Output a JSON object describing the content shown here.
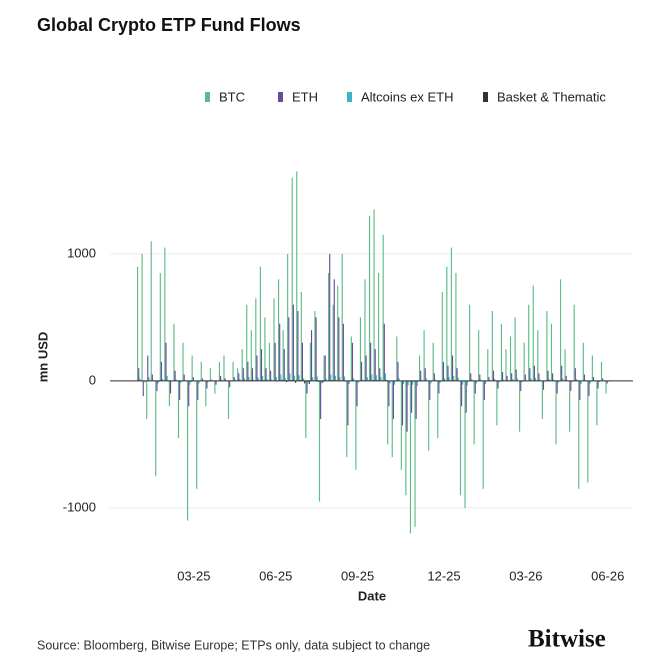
{
  "chart_data": {
    "type": "bar",
    "title": "Global Crypto ETP Fund Flows",
    "x_label": "Date",
    "y_label": "mn USD",
    "source": "Source: Bloomberg, Bitwise Europe; ETPs only, data subject to change",
    "brand": "Bitwise",
    "categories": [
      null,
      null,
      null,
      null,
      null,
      null,
      null,
      null,
      null,
      null,
      null,
      null,
      "03-25",
      null,
      null,
      null,
      null,
      null,
      null,
      null,
      null,
      null,
      null,
      null,
      null,
      null,
      null,
      null,
      null,
      null,
      "06-25",
      null,
      null,
      null,
      null,
      null,
      null,
      null,
      null,
      null,
      null,
      null,
      null,
      null,
      null,
      null,
      null,
      null,
      "09-25",
      null,
      null,
      null,
      null,
      null,
      null,
      null,
      null,
      null,
      null,
      null,
      null,
      null,
      null,
      null,
      null,
      null,
      null,
      "12-25",
      null,
      null,
      null,
      null,
      null,
      null,
      null,
      null,
      null,
      null,
      null,
      null,
      null,
      null,
      null,
      null,
      null,
      "03-26",
      null,
      null,
      null,
      null,
      null,
      null,
      null,
      null,
      null,
      null,
      null,
      null,
      null,
      null,
      null,
      null,
      null,
      "06-26"
    ],
    "series": [
      {
        "name": "BTC",
        "color": "#5dbb87",
        "values": [
          900,
          1000,
          -300,
          1100,
          -750,
          850,
          1050,
          -200,
          450,
          -450,
          300,
          -1100,
          200,
          -850,
          150,
          -200,
          100,
          -100,
          150,
          200,
          -300,
          150,
          100,
          250,
          600,
          400,
          650,
          900,
          500,
          300,
          650,
          800,
          400,
          1000,
          1600,
          1650,
          700,
          -450,
          300,
          550,
          -950,
          200,
          850,
          600,
          750,
          1000,
          -600,
          350,
          -700,
          500,
          800,
          1300,
          1350,
          850,
          1150,
          -500,
          -600,
          350,
          -700,
          -900,
          -1200,
          -1150,
          200,
          400,
          -550,
          300,
          -450,
          700,
          900,
          1050,
          850,
          -900,
          -1000,
          600,
          -500,
          400,
          -850,
          250,
          550,
          -350,
          450,
          250,
          350,
          500,
          -400,
          300,
          600,
          750,
          400,
          -300,
          550,
          450,
          -500,
          800,
          250,
          -400,
          600,
          -850,
          300,
          -800,
          200,
          -350,
          150,
          -100
        ]
      },
      {
        "name": "ETH",
        "color": "#6a4a9c",
        "values": [
          100,
          -120,
          200,
          50,
          -80,
          150,
          300,
          -100,
          80,
          -150,
          50,
          -200,
          30,
          -150,
          20,
          -60,
          10,
          -30,
          40,
          20,
          -50,
          30,
          60,
          100,
          150,
          100,
          200,
          250,
          100,
          80,
          300,
          450,
          250,
          500,
          600,
          550,
          300,
          -100,
          400,
          500,
          -300,
          200,
          1000,
          800,
          500,
          450,
          -350,
          300,
          -200,
          150,
          200,
          300,
          250,
          100,
          450,
          -200,
          -300,
          150,
          -350,
          -400,
          -250,
          -300,
          80,
          100,
          -150,
          60,
          -100,
          150,
          120,
          200,
          100,
          -200,
          -250,
          60,
          -100,
          50,
          -150,
          30,
          80,
          -60,
          70,
          40,
          60,
          90,
          -80,
          50,
          100,
          120,
          60,
          -70,
          80,
          60,
          -100,
          120,
          40,
          -80,
          100,
          -150,
          50,
          -120,
          30,
          -60,
          20,
          -20
        ]
      },
      {
        "name": "Altcoins ex ETH",
        "color": "#3bb4c4",
        "values": [
          20,
          -10,
          30,
          5,
          -20,
          15,
          40,
          -5,
          10,
          -15,
          5,
          -30,
          0,
          -20,
          5,
          -10,
          0,
          -5,
          10,
          5,
          -5,
          10,
          15,
          20,
          30,
          10,
          25,
          40,
          15,
          10,
          30,
          50,
          20,
          60,
          40,
          45,
          20,
          -10,
          30,
          35,
          -20,
          15,
          50,
          40,
          30,
          35,
          -25,
          20,
          -15,
          10,
          30,
          50,
          45,
          30,
          60,
          -20,
          -30,
          20,
          -25,
          -35,
          -30,
          -40,
          10,
          20,
          -20,
          10,
          -15,
          20,
          30,
          40,
          25,
          -30,
          -35,
          15,
          -20,
          10,
          -25,
          5,
          15,
          -10,
          10,
          5,
          15,
          20,
          -10,
          5,
          20,
          25,
          10,
          -5,
          15,
          10,
          -15,
          20,
          5,
          -10,
          15,
          -25,
          5,
          -20,
          5,
          -10,
          5,
          -5
        ]
      },
      {
        "name": "Basket & Thematic",
        "color": "#2b333d",
        "values": [
          5,
          -3,
          4,
          2,
          -6,
          3,
          5,
          -2,
          2,
          -4,
          1,
          -8,
          0,
          -5,
          1,
          -2,
          0,
          -1,
          2,
          1,
          -2,
          2,
          3,
          4,
          5,
          2,
          4,
          6,
          3,
          2,
          -5,
          8,
          -10,
          6,
          -15,
          7,
          -20,
          -25,
          5,
          -8,
          -12,
          3,
          6,
          5,
          4,
          -6,
          -4,
          3,
          -2,
          2,
          4,
          6,
          5,
          3,
          7,
          -3,
          -4,
          2,
          -3,
          -5,
          -6,
          -5,
          2,
          3,
          -2,
          1,
          -2,
          3,
          4,
          5,
          3,
          -4,
          -5,
          2,
          -3,
          1,
          -3,
          1,
          2,
          -1,
          2,
          1,
          2,
          3,
          -1,
          1,
          3,
          4,
          2,
          -1,
          2,
          1,
          -2,
          3,
          1,
          -1,
          2,
          -3,
          1,
          -2,
          1,
          -1,
          1,
          -1
        ]
      }
    ],
    "ylim": [
      -1300,
      1700
    ],
    "yticks": [
      -1000,
      0,
      1000
    ],
    "grid": true,
    "legend": "top-right"
  }
}
